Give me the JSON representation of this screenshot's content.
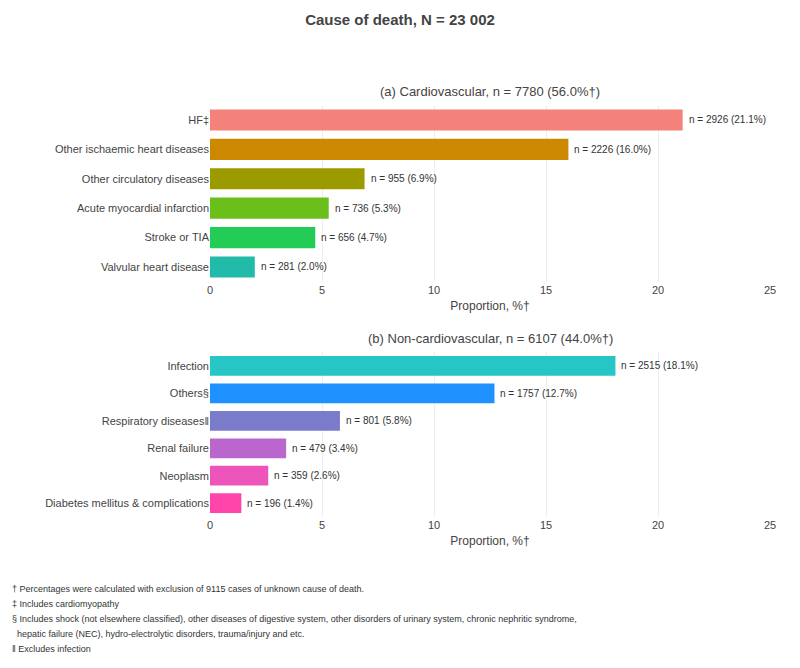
{
  "chart_data": [
    {
      "type": "bar",
      "orientation": "horizontal",
      "title": "Cause of death, N = 23 002",
      "subtitle": "(a) Cardiovascular, n = 7780 (56.0%†)",
      "categories": [
        "HF‡",
        "Other ischaemic heart diseases",
        "Other circulatory diseases",
        "Acute myocardial infarction",
        "Stroke or TIA",
        "Valvular heart disease"
      ],
      "values": [
        21.1,
        16.0,
        6.9,
        5.3,
        4.7,
        2.0
      ],
      "data_labels": true,
      "value_labels": [
        "n = 2926 (21.1%)",
        "n = 2226 (16.0%)",
        "n = 955 (6.9%)",
        "n = 736 (5.3%)",
        "n = 656 (4.7%)",
        "n = 281 (2.0%)"
      ],
      "colors": [
        "#F4827A",
        "#CC8800",
        "#9B9B00",
        "#6BBF1A",
        "#22CC55",
        "#22BBAA"
      ],
      "xlabel": "Proportion, %†",
      "xlim": [
        0,
        25
      ],
      "xticks": [
        0,
        5,
        10,
        15,
        20,
        25
      ],
      "grid": true
    },
    {
      "type": "bar",
      "orientation": "horizontal",
      "subtitle": "(b) Non-cardiovascular, n = 6107 (44.0%†)",
      "categories": [
        "Infection",
        "Others§",
        "Respiratory diseases‖",
        "Renal failure",
        "Neoplasm",
        "Diabetes mellitus & complications"
      ],
      "values": [
        18.1,
        12.7,
        5.8,
        3.4,
        2.6,
        1.4
      ],
      "data_labels": true,
      "value_labels": [
        "n = 2515 (18.1%)",
        "n = 1757 (12.7%)",
        "n = 801 (5.8%)",
        "n = 479 (3.4%)",
        "n = 359 (2.6%)",
        "n = 196 (1.4%)"
      ],
      "colors": [
        "#26C6C6",
        "#1E90FF",
        "#7B7BCC",
        "#BB66CC",
        "#EE55BB",
        "#FF44AA"
      ],
      "xlabel": "Proportion, %†",
      "xlim": [
        0,
        25
      ],
      "xticks": [
        0,
        5,
        10,
        15,
        20,
        25
      ],
      "grid": true,
      "annotations": [
        "† Percentages were calculated with exclusion of 9115 cases of unknown cause of death.",
        "‡ Includes cardiomyopathy",
        "§ Includes shock (not elsewhere classified), other diseases of digestive system, other disorders of urinary system, chronic nephritic syndrome,",
        "  hepatic failure (NEC), hydro-electrolytic disorders, trauma/injury and etc.",
        "‖ Excludes infection"
      ]
    }
  ]
}
